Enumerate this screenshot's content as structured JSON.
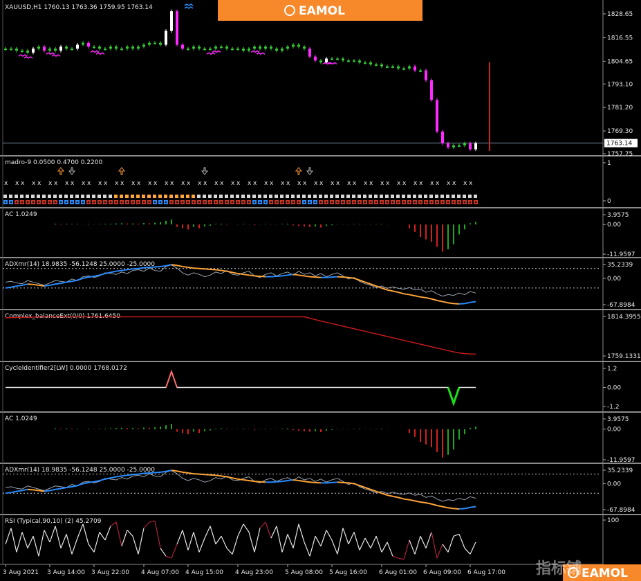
{
  "brand": {
    "name": "EAMOL",
    "bg": "#f7892b"
  },
  "watermark": "指标铺",
  "current_price": "1763.14",
  "colors": {
    "bull": "#ffffff",
    "bear": "#ff2aff",
    "dot": "#33cc33",
    "red": "#d42020",
    "green": "#1fa81f",
    "blue": "#2a8cff",
    "orange": "#ffa53a",
    "grey": "#9aa4b0"
  },
  "chart_data": [
    {
      "type": "line",
      "name": "main",
      "label": "XAUUSD,H1  1760.13 1763.36 1759.95 1763.14",
      "y_ticks": [
        "1828.65",
        "1816.55",
        "1804.65",
        "1793.10",
        "1781.20",
        "1769.30",
        "1757.75"
      ],
      "ylim": [
        1757.75,
        1828.65
      ],
      "close": [
        1811,
        1811,
        1810,
        1810,
        1809,
        1811,
        1812,
        1810,
        1811,
        1810,
        1812,
        1811,
        1811,
        1813,
        1814,
        1812,
        1812,
        1811,
        1811,
        1812,
        1811,
        1811,
        1812,
        1811,
        1812,
        1813,
        1814,
        1814,
        1813,
        1820,
        1830,
        1813,
        1811,
        1811,
        1812,
        1811,
        1811,
        1811,
        1812,
        1812,
        1811,
        1811,
        1811,
        1810,
        1811,
        1812,
        1811,
        1812,
        1811,
        1810,
        1811,
        1812,
        1813,
        1812,
        1811,
        1807,
        1805,
        1804,
        1806,
        1806,
        1806,
        1805,
        1805,
        1805,
        1804,
        1804,
        1803,
        1803,
        1802,
        1802,
        1802,
        1801,
        1801,
        1802,
        1800,
        1800,
        1795,
        1785,
        1769,
        1763,
        1761,
        1762,
        1762,
        1763,
        1760,
        1763
      ]
    },
    {
      "type": "table",
      "name": "madro",
      "label": "madro-9 0.0500 0.4700 0.2200",
      "y_ticks": [
        "1",
        "0"
      ]
    },
    {
      "type": "bar",
      "name": "ac",
      "label": "AC 1.0249",
      "y_ticks": [
        "3.9575",
        "0.00",
        "-11.9597"
      ],
      "ylim": [
        -11.9597,
        3.9575
      ],
      "values": [
        0,
        0,
        0,
        0,
        0,
        0,
        0,
        0,
        0,
        0.3,
        0.2,
        0.3,
        0.2,
        0.2,
        0.1,
        0.2,
        0.1,
        0.2,
        0.2,
        0.3,
        0.4,
        0.5,
        0.4,
        0.4,
        0.3,
        0.6,
        0.5,
        0.7,
        1.0,
        1.5,
        2.0,
        -1.0,
        -1.5,
        -2.0,
        -1.0,
        -1.5,
        -0.8,
        -0.5,
        0.2,
        0.3,
        0.2,
        0,
        0.1,
        0.2,
        0.1,
        -0.3,
        0.1,
        0.2,
        0.1,
        0.1,
        0.2,
        0.3,
        -0.4,
        -0.6,
        -0.8,
        -1.0,
        -0.8,
        -1.2,
        -0.6,
        -0.3,
        0.1,
        0.1,
        0.1,
        0.1,
        0.2,
        0.1,
        0.1,
        0.1,
        0.2,
        0.1,
        0,
        0,
        0,
        -1.5,
        -3,
        -5,
        -6,
        -7,
        -9,
        -11,
        -10,
        -8,
        -4,
        -2,
        0.5,
        1.0
      ]
    },
    {
      "type": "line",
      "name": "adx",
      "label": "ADXmr(14)  18.9835 -56.1248 25.0000 -25.0000",
      "y_ticks": [
        "35.2339",
        "0.00",
        "-67.8984"
      ],
      "ylim": [
        -67.8984,
        35.2339
      ],
      "series": [
        {
          "name": "",
          "values": [
            -25,
            -23,
            -20,
            -18,
            -15,
            -16,
            -18,
            -20,
            -18,
            -15,
            -13,
            -10,
            -8,
            -5,
            0,
            3,
            5,
            8,
            12,
            15,
            18,
            20,
            22,
            24,
            25,
            27,
            28,
            29,
            30,
            32,
            35,
            33,
            30,
            28,
            26,
            25,
            24,
            23,
            22,
            20,
            18,
            15,
            12,
            10,
            8,
            6,
            5,
            4,
            4,
            5,
            6,
            8,
            10,
            8,
            6,
            4,
            3,
            2,
            2,
            3,
            4,
            3,
            2,
            0,
            -5,
            -10,
            -15,
            -20,
            -25,
            -30,
            -33,
            -36,
            -40,
            -42,
            -45,
            -48,
            -50,
            -53,
            -57,
            -60,
            -63,
            -65,
            -66,
            -65,
            -62,
            -60
          ]
        },
        {
          "name": "",
          "values": [
            -10,
            -8,
            -12,
            -14,
            -6,
            -10,
            -14,
            -18,
            -12,
            -6,
            -8,
            -10,
            -2,
            -6,
            4,
            6,
            2,
            6,
            14,
            12,
            10,
            16,
            12,
            20,
            22,
            18,
            26,
            20,
            18,
            30,
            34,
            26,
            14,
            8,
            14,
            10,
            4,
            8,
            16,
            12,
            20,
            10,
            8,
            14,
            18,
            6,
            2,
            10,
            14,
            6,
            12,
            16,
            8,
            18,
            10,
            14,
            6,
            12,
            4,
            10,
            14,
            6,
            -2,
            2,
            -8,
            -14,
            -18,
            -24,
            -20,
            -26,
            -22,
            -26,
            -28,
            -24,
            -30,
            -28,
            -36,
            -32,
            -40,
            -46,
            -42,
            -44,
            -38,
            -42,
            -34,
            -38
          ]
        }
      ]
    },
    {
      "type": "line",
      "name": "balance",
      "label": "Complex_balanceExt(0/0) 1761.6450",
      "y_ticks": [
        "1814.3955",
        "1759.1331"
      ],
      "ylim": [
        1759.1331,
        1814.3955
      ],
      "values": [
        1812.6,
        1812.8,
        1813.0,
        1813.2,
        1813.4,
        1813.6,
        1813.8,
        1813.9,
        1813.9,
        1813.9,
        1813.9,
        1813.9,
        1813.9,
        1813.9,
        1813.9,
        1813.9,
        1813.9,
        1813.9,
        1813.9,
        1813.9,
        1813.9,
        1813.9,
        1813.9,
        1813.9,
        1813.9,
        1813.9,
        1813.9,
        1813.9,
        1813.9,
        1813.9,
        1813.9,
        1813.9,
        1813.9,
        1813.9,
        1813.9,
        1813.9,
        1813.9,
        1813.9,
        1813.9,
        1813.9,
        1813.9,
        1813.9,
        1813.9,
        1813.9,
        1813.9,
        1813.9,
        1813.9,
        1813.9,
        1813.9,
        1813.9,
        1813.9,
        1813.9,
        1813.9,
        1813.9,
        1813.9,
        1812.0,
        1810.0,
        1808.0,
        1806.2,
        1804.4,
        1802.6,
        1800.8,
        1799.0,
        1797.2,
        1795.4,
        1793.6,
        1791.8,
        1790.0,
        1788.2,
        1786.4,
        1784.6,
        1782.8,
        1781.0,
        1779.2,
        1777.4,
        1775.6,
        1773.8,
        1772.0,
        1770.2,
        1768.4,
        1766.6,
        1764.8,
        1763.4,
        1762.4,
        1761.9,
        1761.6
      ]
    },
    {
      "type": "line",
      "name": "cycle",
      "label": "CycleIdentifier2[LW] 0.0000 1768.0172",
      "y_ticks": [
        "1.2",
        "0.00",
        "-1.2"
      ],
      "ylim": [
        -1.2,
        1.2
      ],
      "values": [
        0,
        0,
        0,
        0,
        0,
        0,
        0,
        0,
        0,
        0,
        0,
        0,
        0,
        0,
        0,
        0,
        0,
        0,
        0,
        0,
        0,
        0,
        0,
        0,
        0,
        0,
        0,
        0,
        0,
        0,
        1,
        0,
        0,
        0,
        0,
        0,
        0,
        0,
        0,
        0,
        0,
        0,
        0,
        0,
        0,
        0,
        0,
        0,
        0,
        0,
        0,
        0,
        0,
        0,
        0,
        0,
        0,
        0,
        0,
        0,
        0,
        0,
        0,
        0,
        0,
        0,
        0,
        0,
        0,
        0,
        0,
        0,
        0,
        0,
        0,
        0,
        0,
        0,
        0,
        0,
        0,
        -1,
        0,
        0,
        0,
        0
      ]
    },
    {
      "type": "bar",
      "name": "ac2",
      "label": "AC 1.0249",
      "y_ticks": [
        "3.9575",
        "0.00",
        "-11.9597"
      ],
      "ylim": [
        -11.9597,
        3.9575
      ]
    },
    {
      "type": "line",
      "name": "adx2",
      "label": "ADXmr(14)  18.9835 -56.1248 25.0000 -25.0000",
      "y_ticks": [
        "35.2339",
        "0.00",
        "-67.8984"
      ],
      "ylim": [
        -67.8984,
        35.2339
      ]
    },
    {
      "type": "line",
      "name": "rsi",
      "label": "RSI (Typical,90,10) (2) 45.2709",
      "y_ticks": [
        "100"
      ],
      "ylim": [
        0,
        100
      ],
      "values": [
        40,
        80,
        20,
        70,
        30,
        60,
        10,
        75,
        45,
        85,
        30,
        65,
        15,
        55,
        90,
        40,
        20,
        70,
        50,
        85,
        95,
        35,
        75,
        60,
        15,
        80,
        95,
        98,
        30,
        10,
        5,
        40,
        75,
        25,
        70,
        20,
        55,
        85,
        40,
        60,
        30,
        15,
        60,
        90,
        70,
        20,
        80,
        95,
        55,
        85,
        20,
        65,
        30,
        90,
        45,
        10,
        60,
        35,
        75,
        50,
        15,
        80,
        40,
        70,
        25,
        55,
        30,
        60,
        20,
        45,
        10,
        5,
        2,
        50,
        15,
        60,
        30,
        70,
        5,
        40,
        20,
        60,
        65,
        30,
        15,
        45
      ]
    }
  ],
  "x_ticks": [
    "3 Aug 2021",
    "3 Aug 14:00",
    "3 Aug 22:00",
    "4 Aug 07:00",
    "4 Aug 15:00",
    "4 Aug 23:00",
    "5 Aug 08:00",
    "5 Aug 16:00",
    "6 Aug 01:00",
    "6 Aug 09:00",
    "6 Aug 17:00"
  ]
}
